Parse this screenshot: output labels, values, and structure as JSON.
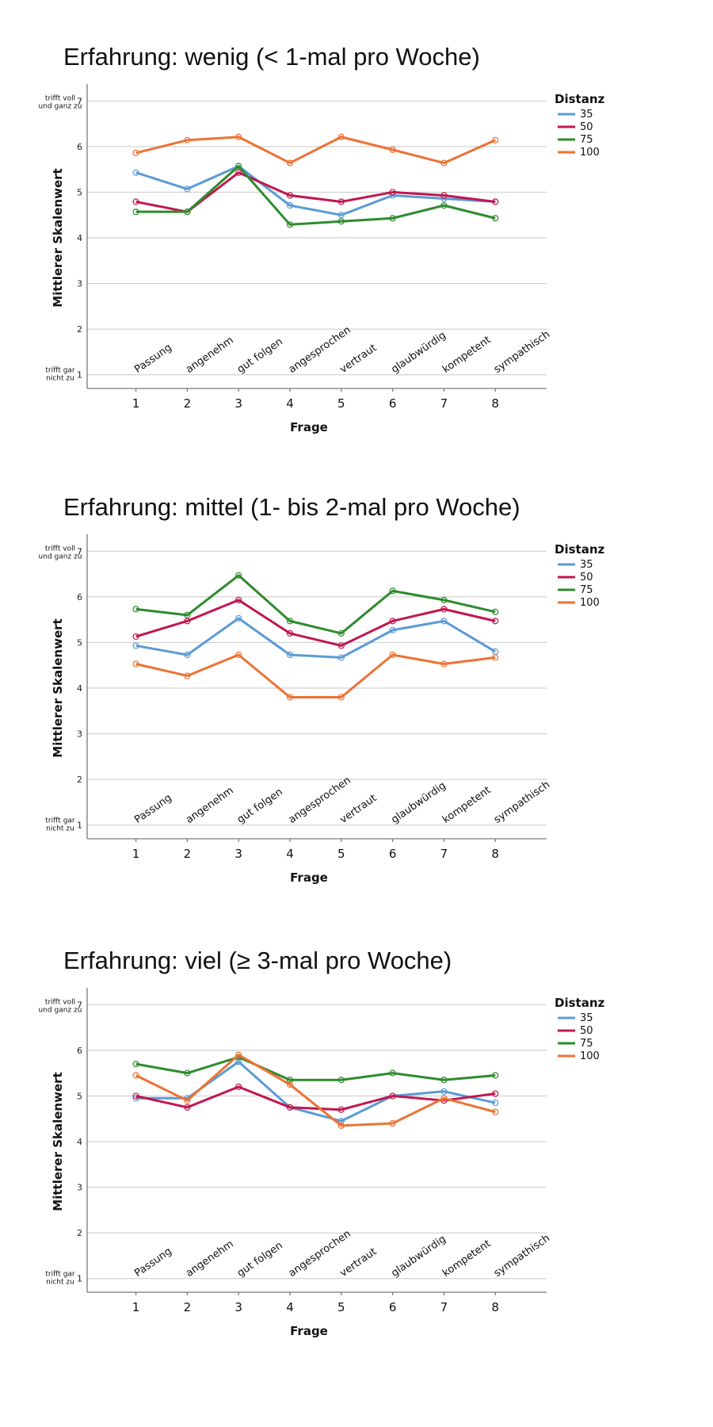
{
  "chart_data": [
    {
      "type": "line",
      "title": "Erfahrung: wenig (< 1-mal pro Woche)",
      "xlabel": "Frage",
      "ylabel": "Mittlerer Skalenwert",
      "x": [
        1,
        2,
        3,
        4,
        5,
        6,
        7,
        8
      ],
      "categories": [
        "Passung",
        "angenehm",
        "gut folgen",
        "angesprochen",
        "vertraut",
        "glaubwürdig",
        "kompetent",
        "sympathisch"
      ],
      "yticks": [
        1,
        2,
        3,
        4,
        5,
        6,
        7
      ],
      "ylim": [
        0.7,
        7.3
      ],
      "xlim": [
        0.05,
        9
      ],
      "y_top_anchor": "trifft voll und ganz zu",
      "y_bottom_anchor": "trifft gar nicht zu",
      "legend": {
        "title": "Distanz",
        "position": "top-right"
      },
      "grid": true,
      "series": [
        {
          "name": "35",
          "color": "#5b9bd5",
          "values": [
            5.43,
            5.07,
            5.57,
            4.71,
            4.5,
            4.93,
            4.86,
            4.79
          ]
        },
        {
          "name": "50",
          "color": "#c0174f",
          "values": [
            4.79,
            4.57,
            5.43,
            4.93,
            4.79,
            5.0,
            4.93,
            4.79
          ]
        },
        {
          "name": "75",
          "color": "#2e8b2e",
          "values": [
            4.57,
            4.57,
            5.57,
            4.29,
            4.36,
            4.43,
            4.71,
            4.43
          ]
        },
        {
          "name": "100",
          "color": "#ed7232",
          "values": [
            5.86,
            6.14,
            6.21,
            5.64,
            6.21,
            5.93,
            5.64,
            6.14
          ]
        }
      ]
    },
    {
      "type": "line",
      "title": "Erfahrung: mittel (1- bis 2-mal pro Woche)",
      "xlabel": "Frage",
      "ylabel": "Mittlerer Skalenwert",
      "x": [
        1,
        2,
        3,
        4,
        5,
        6,
        7,
        8
      ],
      "categories": [
        "Passung",
        "angenehm",
        "gut folgen",
        "angesprochen",
        "vertraut",
        "glaubwürdig",
        "kompetent",
        "sympathisch"
      ],
      "yticks": [
        1,
        2,
        3,
        4,
        5,
        6,
        7
      ],
      "ylim": [
        0.7,
        7.3
      ],
      "xlim": [
        0.05,
        9
      ],
      "y_top_anchor": "trifft voll und ganz zu",
      "y_bottom_anchor": "trifft gar nicht zu",
      "legend": {
        "title": "Distanz",
        "position": "top-right"
      },
      "grid": true,
      "series": [
        {
          "name": "35",
          "color": "#5b9bd5",
          "values": [
            4.93,
            4.73,
            5.53,
            4.73,
            4.67,
            5.27,
            5.47,
            4.8
          ]
        },
        {
          "name": "50",
          "color": "#c0174f",
          "values": [
            5.13,
            5.47,
            5.93,
            5.2,
            4.93,
            5.47,
            5.73,
            5.47
          ]
        },
        {
          "name": "75",
          "color": "#2e8b2e",
          "values": [
            5.73,
            5.6,
            6.47,
            5.47,
            5.2,
            6.13,
            5.93,
            5.67
          ]
        },
        {
          "name": "100",
          "color": "#ed7232",
          "values": [
            4.53,
            4.27,
            4.73,
            3.8,
            3.8,
            4.73,
            4.53,
            4.67
          ]
        }
      ]
    },
    {
      "type": "line",
      "title": "Erfahrung: viel (≥ 3-mal pro Woche)",
      "xlabel": "Frage",
      "ylabel": "Mittlerer Skalenwert",
      "x": [
        1,
        2,
        3,
        4,
        5,
        6,
        7,
        8
      ],
      "categories": [
        "Passung",
        "angenehm",
        "gut folgen",
        "angesprochen",
        "vertraut",
        "glaubwürdig",
        "kompetent",
        "sympathisch"
      ],
      "yticks": [
        1,
        2,
        3,
        4,
        5,
        6,
        7
      ],
      "ylim": [
        0.7,
        7.3
      ],
      "xlim": [
        0.05,
        9
      ],
      "y_top_anchor": "trifft voll und ganz zu",
      "y_bottom_anchor": "trifft gar nicht zu",
      "legend": {
        "title": "Distanz",
        "position": "top-right"
      },
      "grid": true,
      "series": [
        {
          "name": "35",
          "color": "#5b9bd5",
          "values": [
            4.95,
            4.95,
            5.75,
            4.75,
            4.45,
            5.0,
            5.1,
            4.85
          ]
        },
        {
          "name": "50",
          "color": "#c0174f",
          "values": [
            5.0,
            4.75,
            5.2,
            4.75,
            4.7,
            5.0,
            4.9,
            5.05
          ]
        },
        {
          "name": "75",
          "color": "#2e8b2e",
          "values": [
            5.7,
            5.5,
            5.85,
            5.35,
            5.35,
            5.5,
            5.35,
            5.45
          ]
        },
        {
          "name": "100",
          "color": "#ed7232",
          "values": [
            5.45,
            4.9,
            5.9,
            5.25,
            4.35,
            4.4,
            4.95,
            4.65
          ]
        }
      ]
    }
  ]
}
